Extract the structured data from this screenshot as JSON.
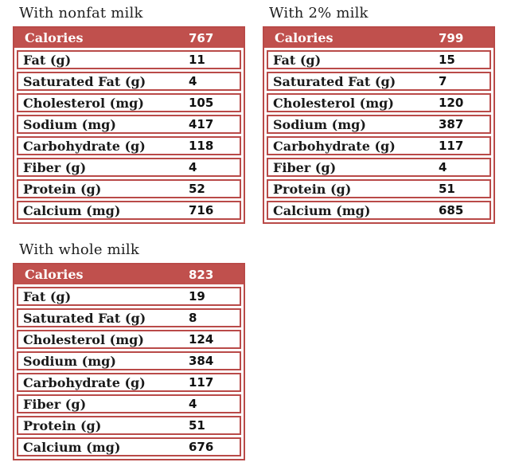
{
  "colors": {
    "accent_red": "#c0504d",
    "border_red": "#b94a48",
    "header_text": "#ffffff",
    "body_text": "#1a1a1a",
    "background": "#ffffff"
  },
  "tables": [
    {
      "title": "With nonfat milk",
      "header": {
        "label": "Calories",
        "value": "767"
      },
      "rows": [
        {
          "label": "Fat (g)",
          "value": "11"
        },
        {
          "label": "Saturated Fat (g)",
          "value": "4"
        },
        {
          "label": "Cholesterol (mg)",
          "value": "105"
        },
        {
          "label": "Sodium (mg)",
          "value": "417"
        },
        {
          "label": "Carbohydrate (g)",
          "value": "118"
        },
        {
          "label": "Fiber (g)",
          "value": "4"
        },
        {
          "label": "Protein (g)",
          "value": "52"
        },
        {
          "label": "Calcium (mg)",
          "value": "716"
        }
      ]
    },
    {
      "title": "With 2% milk",
      "header": {
        "label": "Calories",
        "value": "799"
      },
      "rows": [
        {
          "label": "Fat (g)",
          "value": "15"
        },
        {
          "label": "Saturated Fat (g)",
          "value": "7"
        },
        {
          "label": "Cholesterol (mg)",
          "value": "120"
        },
        {
          "label": "Sodium (mg)",
          "value": "387"
        },
        {
          "label": "Carbohydrate (g)",
          "value": "117"
        },
        {
          "label": "Fiber (g)",
          "value": "4"
        },
        {
          "label": "Protein (g)",
          "value": "51"
        },
        {
          "label": "Calcium (mg)",
          "value": "685"
        }
      ]
    },
    {
      "title": "With whole milk",
      "header": {
        "label": "Calories",
        "value": "823"
      },
      "rows": [
        {
          "label": "Fat (g)",
          "value": "19"
        },
        {
          "label": "Saturated Fat (g)",
          "value": "8"
        },
        {
          "label": "Cholesterol (mg)",
          "value": "124"
        },
        {
          "label": "Sodium (mg)",
          "value": "384"
        },
        {
          "label": "Carbohydrate (g)",
          "value": "117"
        },
        {
          "label": "Fiber (g)",
          "value": "4"
        },
        {
          "label": "Protein (g)",
          "value": "51"
        },
        {
          "label": "Calcium (mg)",
          "value": "676"
        }
      ]
    }
  ]
}
